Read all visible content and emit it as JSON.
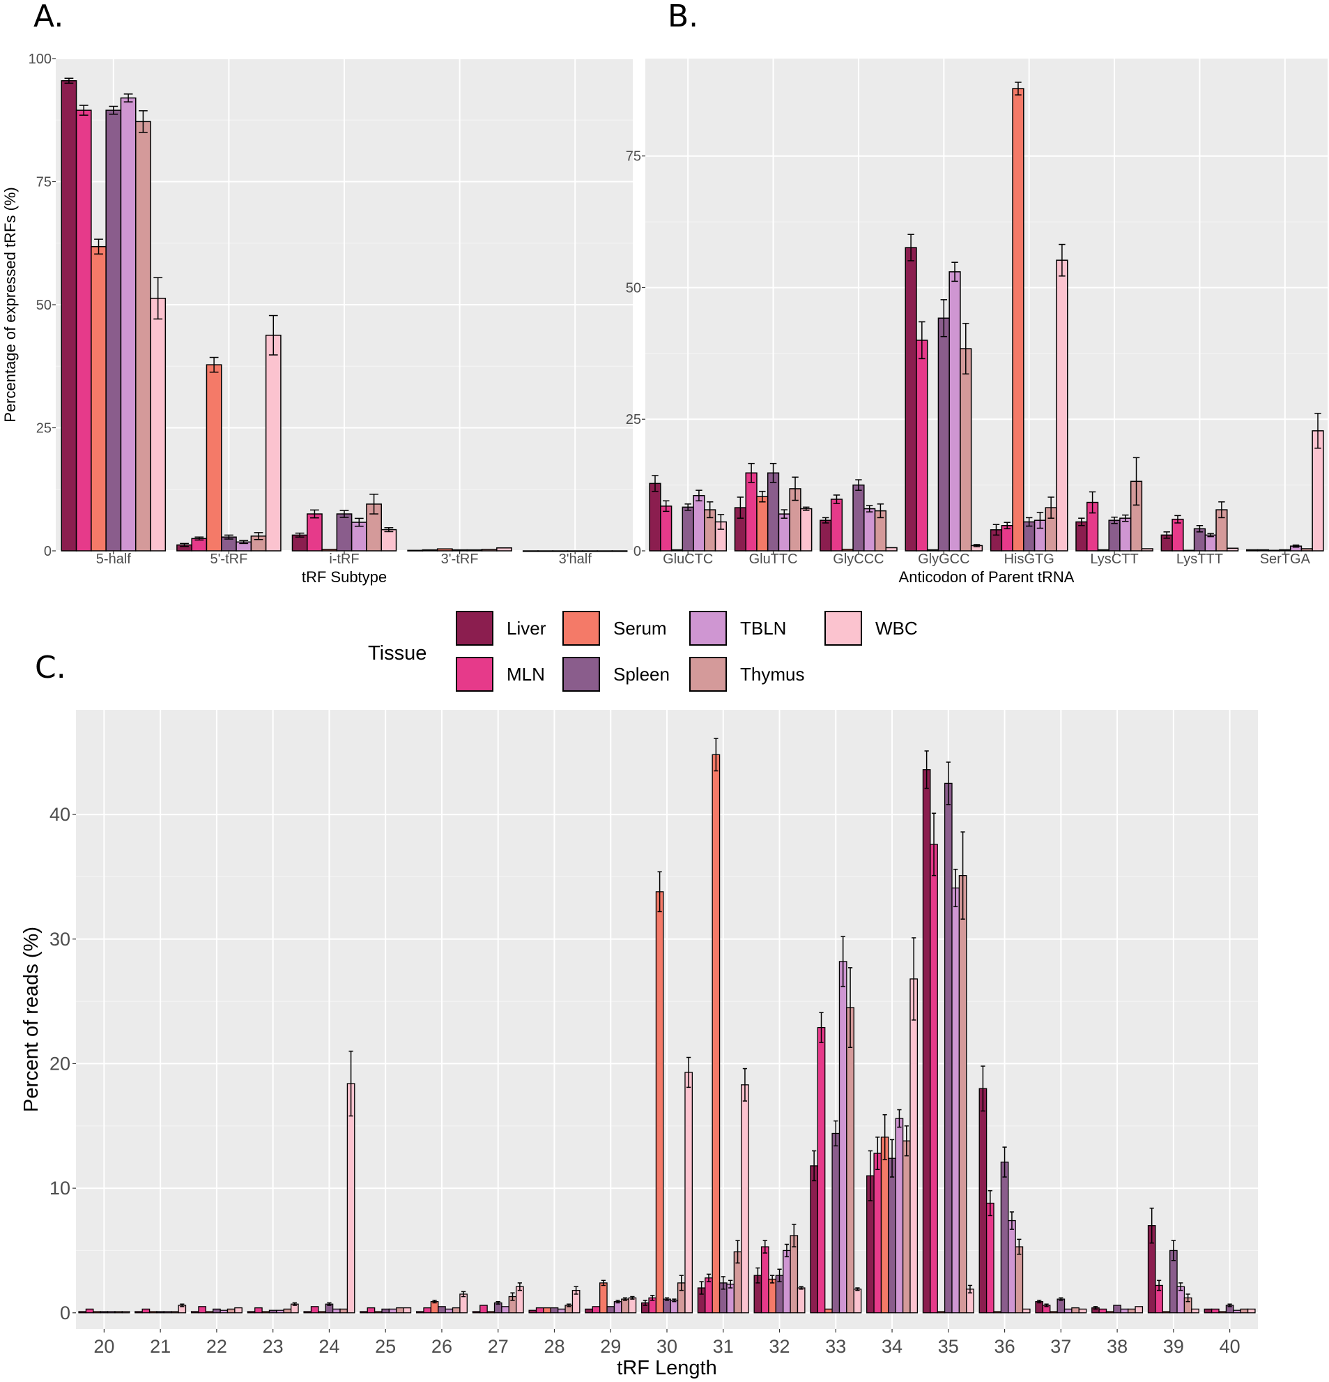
{
  "panel_labels": {
    "a": "A.",
    "b": "B.",
    "c": "C."
  },
  "legend": {
    "title": "Tissue",
    "items": [
      {
        "name": "Liver",
        "color": "#8b1e4f"
      },
      {
        "name": "MLN",
        "color": "#e63a8a"
      },
      {
        "name": "Serum",
        "color": "#f47a68"
      },
      {
        "name": "Spleen",
        "color": "#8a5d8c"
      },
      {
        "name": "TBLN",
        "color": "#cf96d2"
      },
      {
        "name": "Thymus",
        "color": "#d49a9a"
      },
      {
        "name": "WBC",
        "color": "#fbc3cf"
      }
    ]
  },
  "chart_data": [
    {
      "id": "A",
      "type": "bar",
      "xlabel": "tRF Subtype",
      "ylabel": "Percentage of expressed tRFs (%)",
      "ylim": [
        0,
        100
      ],
      "yticks": [
        0,
        25,
        50,
        75,
        100
      ],
      "categories": [
        "5-half",
        "5'-tRF",
        "i-tRF",
        "3'-tRF",
        "3'half"
      ],
      "series": [
        {
          "name": "Liver",
          "values": [
            95.5,
            1.2,
            3.2,
            0.1,
            0
          ],
          "errors": [
            0.5,
            0.3,
            0.4,
            0.05,
            0
          ]
        },
        {
          "name": "MLN",
          "values": [
            89.5,
            2.5,
            7.5,
            0.2,
            0
          ],
          "errors": [
            1.0,
            0.3,
            0.8,
            0.05,
            0
          ]
        },
        {
          "name": "Serum",
          "values": [
            61.8,
            37.8,
            0.3,
            0.4,
            0
          ],
          "errors": [
            1.5,
            1.5,
            0.1,
            0.1,
            0
          ]
        },
        {
          "name": "Spleen",
          "values": [
            89.5,
            2.8,
            7.5,
            0.2,
            0
          ],
          "errors": [
            0.8,
            0.4,
            0.7,
            0.05,
            0
          ]
        },
        {
          "name": "TBLN",
          "values": [
            92.0,
            1.8,
            5.8,
            0.2,
            0
          ],
          "errors": [
            0.8,
            0.3,
            0.8,
            0.05,
            0
          ]
        },
        {
          "name": "Thymus",
          "values": [
            87.2,
            3.0,
            9.5,
            0.3,
            0
          ],
          "errors": [
            2.2,
            0.7,
            2.0,
            0.1,
            0
          ]
        },
        {
          "name": "WBC",
          "values": [
            51.3,
            43.8,
            4.3,
            0.6,
            0
          ],
          "errors": [
            4.2,
            4.0,
            0.4,
            0.1,
            0
          ]
        }
      ]
    },
    {
      "id": "B",
      "type": "bar",
      "xlabel": "Anticodon of Parent tRNA",
      "ylabel": "",
      "ylim": [
        0,
        93.5
      ],
      "yticks": [
        0,
        25,
        50,
        75
      ],
      "categories": [
        "GluCTC",
        "GluTTC",
        "GlyCCC",
        "GlyGCC",
        "HisGTG",
        "LysCTT",
        "LysTTT",
        "SerTGA"
      ],
      "series": [
        {
          "name": "Liver",
          "values": [
            12.8,
            8.2,
            5.8,
            57.6,
            4.0,
            5.5,
            3.0,
            0.2
          ],
          "errors": [
            1.5,
            2.0,
            0.5,
            2.5,
            1.0,
            0.7,
            0.6,
            0.05
          ]
        },
        {
          "name": "MLN",
          "values": [
            8.5,
            14.8,
            9.8,
            40.0,
            4.8,
            9.2,
            6.0,
            0.2
          ],
          "errors": [
            1.0,
            1.8,
            0.8,
            3.5,
            0.6,
            2.0,
            0.7,
            0.05
          ]
        },
        {
          "name": "Serum",
          "values": [
            0.2,
            10.3,
            0.3,
            0.2,
            87.8,
            0.2,
            0.1,
            0.1
          ],
          "errors": [
            0.05,
            1.0,
            0.05,
            0.05,
            1.2,
            0.05,
            0.05,
            0.05
          ]
        },
        {
          "name": "Spleen",
          "values": [
            8.3,
            14.8,
            12.5,
            44.2,
            5.5,
            5.8,
            4.2,
            0.2
          ],
          "errors": [
            0.6,
            1.8,
            1.0,
            3.5,
            0.8,
            0.6,
            0.6,
            0.05
          ]
        },
        {
          "name": "TBLN",
          "values": [
            10.5,
            7.0,
            8.0,
            53.0,
            5.8,
            6.2,
            3.0,
            0.9
          ],
          "errors": [
            1.0,
            0.8,
            0.6,
            1.8,
            1.5,
            0.6,
            0.3,
            0.2
          ]
        },
        {
          "name": "Thymus",
          "values": [
            7.8,
            11.8,
            7.6,
            38.4,
            8.2,
            13.2,
            7.8,
            0.4
          ],
          "errors": [
            1.5,
            2.2,
            1.3,
            4.8,
            2.0,
            4.5,
            1.5,
            0.1
          ]
        },
        {
          "name": "WBC",
          "values": [
            5.5,
            8.0,
            0.6,
            1.0,
            55.2,
            0.4,
            0.5,
            22.8
          ],
          "errors": [
            1.4,
            0.3,
            0.1,
            0.2,
            3.0,
            0.1,
            0.1,
            3.3
          ]
        }
      ]
    },
    {
      "id": "C",
      "type": "bar",
      "xlabel": "tRF Length",
      "ylabel": "Percent of reads (%)",
      "ylim": [
        -1.3,
        48.4
      ],
      "yticks": [
        0,
        10,
        20,
        30,
        40
      ],
      "categories": [
        "20",
        "21",
        "22",
        "23",
        "24",
        "25",
        "26",
        "27",
        "28",
        "29",
        "30",
        "31",
        "32",
        "33",
        "34",
        "35",
        "36",
        "37",
        "38",
        "39",
        "40"
      ],
      "series": [
        {
          "name": "Liver",
          "values": [
            0.1,
            0.1,
            0.1,
            0.1,
            0.1,
            0.1,
            0.1,
            0.1,
            0.2,
            0.3,
            0.8,
            2.0,
            3.0,
            11.8,
            11.0,
            43.6,
            18.0,
            0.9,
            0.4,
            7.0,
            0.3
          ],
          "errors": [
            0.05,
            0.05,
            0.05,
            0.05,
            0.05,
            0.05,
            0.05,
            0.05,
            0.05,
            0.05,
            0.2,
            0.5,
            0.6,
            1.2,
            2.0,
            1.5,
            1.8,
            0.1,
            0.1,
            1.4,
            0.05
          ]
        },
        {
          "name": "MLN",
          "values": [
            0.3,
            0.3,
            0.5,
            0.4,
            0.5,
            0.4,
            0.4,
            0.6,
            0.4,
            0.5,
            1.2,
            2.8,
            5.3,
            22.9,
            12.8,
            37.6,
            8.8,
            0.6,
            0.3,
            2.2,
            0.3
          ],
          "errors": [
            0.05,
            0.05,
            0.05,
            0.05,
            0.05,
            0.05,
            0.05,
            0.05,
            0.05,
            0.05,
            0.2,
            0.3,
            0.5,
            1.2,
            1.3,
            2.5,
            1.0,
            0.1,
            0.05,
            0.4,
            0.05
          ]
        },
        {
          "name": "Serum",
          "values": [
            0.1,
            0.1,
            0.1,
            0.1,
            0.1,
            0.1,
            0.9,
            0.1,
            0.4,
            2.4,
            33.8,
            44.8,
            2.7,
            0.3,
            14.1,
            0.1,
            0.1,
            0.1,
            0.1,
            0.1,
            0.1
          ],
          "errors": [
            0.05,
            0.05,
            0.05,
            0.05,
            0.05,
            0.05,
            0.1,
            0.05,
            0.05,
            0.2,
            1.6,
            1.3,
            0.3,
            0.05,
            1.8,
            0.05,
            0.05,
            0.05,
            0.05,
            0.05,
            0.05
          ]
        },
        {
          "name": "Spleen",
          "values": [
            0.1,
            0.1,
            0.3,
            0.2,
            0.7,
            0.3,
            0.5,
            0.8,
            0.4,
            0.5,
            1.1,
            2.4,
            3.0,
            14.4,
            12.4,
            42.5,
            12.1,
            1.1,
            0.6,
            5.0,
            0.6
          ],
          "errors": [
            0.05,
            0.05,
            0.05,
            0.05,
            0.1,
            0.05,
            0.05,
            0.1,
            0.05,
            0.05,
            0.1,
            0.5,
            0.5,
            1.0,
            1.5,
            1.7,
            1.2,
            0.1,
            0.05,
            0.8,
            0.1
          ]
        },
        {
          "name": "TBLN",
          "values": [
            0.1,
            0.1,
            0.2,
            0.2,
            0.3,
            0.3,
            0.3,
            0.5,
            0.3,
            0.9,
            1.0,
            2.3,
            5.0,
            28.2,
            15.6,
            34.1,
            7.4,
            0.3,
            0.3,
            2.1,
            0.2
          ],
          "errors": [
            0.05,
            0.05,
            0.05,
            0.05,
            0.05,
            0.05,
            0.05,
            0.05,
            0.05,
            0.1,
            0.1,
            0.3,
            0.5,
            2.0,
            0.7,
            1.5,
            0.7,
            0.05,
            0.05,
            0.3,
            0.05
          ]
        },
        {
          "name": "Thymus",
          "values": [
            0.1,
            0.1,
            0.3,
            0.3,
            0.3,
            0.4,
            0.4,
            1.3,
            0.6,
            1.1,
            2.4,
            4.9,
            6.2,
            24.5,
            13.8,
            35.1,
            5.3,
            0.4,
            0.3,
            1.2,
            0.3
          ],
          "errors": [
            0.05,
            0.05,
            0.05,
            0.05,
            0.05,
            0.05,
            0.05,
            0.3,
            0.1,
            0.1,
            0.6,
            0.9,
            0.9,
            3.2,
            1.2,
            3.5,
            0.6,
            0.05,
            0.05,
            0.3,
            0.05
          ]
        },
        {
          "name": "WBC",
          "values": [
            0.1,
            0.6,
            0.4,
            0.7,
            18.4,
            0.4,
            1.5,
            2.1,
            1.8,
            1.2,
            19.3,
            18.3,
            2.0,
            1.9,
            26.8,
            1.9,
            0.3,
            0.3,
            0.5,
            0.3,
            0.3
          ],
          "errors": [
            0.05,
            0.1,
            0.05,
            0.1,
            2.6,
            0.05,
            0.2,
            0.3,
            0.3,
            0.1,
            1.2,
            1.3,
            0.1,
            0.1,
            3.3,
            0.3,
            0.05,
            0.05,
            0.05,
            0.05,
            0.05
          ]
        }
      ]
    }
  ]
}
